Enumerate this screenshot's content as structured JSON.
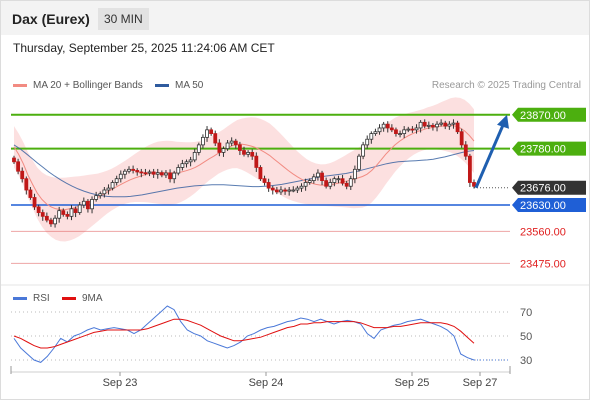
{
  "header": {
    "instrument": "Dax (Eurex)",
    "timeframe": "30 MIN"
  },
  "datetime": "Thursday, September 25, 2025 11:24:06 AM CET",
  "legend": {
    "items": [
      {
        "label": "MA 20 + Bollinger Bands",
        "color": "#f28b82"
      },
      {
        "label": "MA 50",
        "color": "#2f5b9e"
      }
    ],
    "credit": "Research © 2025 Trading Central"
  },
  "chart_data": {
    "type": "candlestick",
    "x_tick_labels": [
      "Sep 23",
      "Sep 24",
      "Sep 25",
      "Sep 27"
    ],
    "price_range": [
      23420,
      23920
    ],
    "levels": [
      {
        "value": 23870,
        "label": "23870.00",
        "kind": "resistance",
        "color": "#4caf0f"
      },
      {
        "value": 23780,
        "label": "23780.00",
        "kind": "resistance",
        "color": "#4caf0f"
      },
      {
        "value": 23676,
        "label": "23676.00",
        "kind": "last-price",
        "color": "#333333"
      },
      {
        "value": 23630,
        "label": "23630.00",
        "kind": "support",
        "color": "#1f5fd6"
      },
      {
        "value": 23560,
        "label": "23560.00",
        "kind": "support",
        "color": "#e05a5a"
      },
      {
        "value": 23475,
        "label": "23475.00",
        "kind": "support",
        "color": "#e05a5a"
      }
    ],
    "forecast_arrow": {
      "from": 23676,
      "to": 23870
    },
    "candles_close": [
      23745,
      23720,
      23700,
      23670,
      23650,
      23625,
      23610,
      23600,
      23590,
      23580,
      23595,
      23615,
      23605,
      23600,
      23620,
      23610,
      23630,
      23640,
      23620,
      23645,
      23655,
      23660,
      23670,
      23675,
      23690,
      23700,
      23712,
      23720,
      23725,
      23722,
      23718,
      23716,
      23715,
      23718,
      23712,
      23716,
      23710,
      23715,
      23700,
      23715,
      23730,
      23740,
      23745,
      23750,
      23770,
      23790,
      23810,
      23830,
      23820,
      23795,
      23770,
      23780,
      23795,
      23800,
      23790,
      23775,
      23765,
      23770,
      23760,
      23730,
      23700,
      23690,
      23675,
      23670,
      23665,
      23670,
      23667,
      23670,
      23670,
      23675,
      23680,
      23690,
      23695,
      23705,
      23715,
      23695,
      23680,
      23690,
      23700,
      23700,
      23688,
      23680,
      23700,
      23725,
      23760,
      23790,
      23805,
      23820,
      23825,
      23835,
      23845,
      23835,
      23830,
      23820,
      23820,
      23830,
      23832,
      23830,
      23835,
      23850,
      23840,
      23842,
      23838,
      23845,
      23848,
      23840,
      23845,
      23848,
      23825,
      23790,
      23760,
      23690,
      23680
    ],
    "ma20": [
      23785,
      23765,
      23740,
      23710,
      23685,
      23662,
      23645,
      23633,
      23625,
      23620,
      23618,
      23618,
      23620,
      23623,
      23627,
      23632,
      23638,
      23644,
      23650,
      23657,
      23664,
      23671,
      23678,
      23685,
      23691,
      23697,
      23702,
      23706,
      23710,
      23713,
      23715,
      23716,
      23716,
      23716,
      23716,
      23716,
      23718,
      23721,
      23725,
      23730,
      23737,
      23745,
      23753,
      23760,
      23768,
      23775,
      23782,
      23788,
      23792,
      23792,
      23790,
      23787,
      23783,
      23777,
      23770,
      23762,
      23752,
      23742,
      23732,
      23722,
      23713,
      23705,
      23698,
      23692,
      23688,
      23685,
      23683,
      23683,
      23684,
      23686,
      23689,
      23692,
      23695,
      23698,
      23702,
      23706,
      23712,
      23722,
      23735,
      23750,
      23765,
      23778,
      23790,
      23800,
      23808,
      23815,
      23821,
      23826,
      23830,
      23834,
      23836,
      23838,
      23840,
      23841,
      23842,
      23840,
      23835,
      23827,
      23815,
      23800
    ],
    "ma50": [
      23790,
      23780,
      23768,
      23755,
      23742,
      23730,
      23718,
      23707,
      23697,
      23688,
      23680,
      23673,
      23667,
      23662,
      23658,
      23655,
      23653,
      23652,
      23652,
      23652,
      23653,
      23655,
      23657,
      23660,
      23663,
      23666,
      23669,
      23672,
      23675,
      23677,
      23679,
      23681,
      23682,
      23683,
      23684,
      23684,
      23684,
      23683,
      23682,
      23681,
      23680,
      23679,
      23679,
      23680,
      23681,
      23683,
      23685,
      23688,
      23691,
      23694,
      23697,
      23700,
      23703,
      23706,
      23708,
      23710,
      23712,
      23714,
      23717,
      23720,
      23724,
      23728,
      23732,
      23736,
      23740,
      23743,
      23745,
      23746,
      23747,
      23748,
      23749,
      23750,
      23752,
      23755,
      23758,
      23762,
      23766,
      23770,
      23773,
      23775
    ],
    "rsi": {
      "y_tick_labels": [
        "70",
        "50",
        "30"
      ],
      "rsi_values": [
        48,
        40,
        35,
        30,
        28,
        33,
        40,
        48,
        45,
        50,
        52,
        55,
        57,
        55,
        56,
        57,
        56,
        55,
        52,
        55,
        60,
        65,
        70,
        75,
        72,
        62,
        55,
        52,
        50,
        46,
        44,
        42,
        40,
        42,
        45,
        50,
        52,
        55,
        57,
        58,
        60,
        62,
        63,
        65,
        64,
        62,
        64,
        62,
        60,
        62,
        63,
        62,
        60,
        52,
        48,
        55,
        57,
        59,
        60,
        62,
        63,
        64,
        62,
        60,
        58,
        55,
        50,
        35,
        32,
        30
      ],
      "ma9_values": [
        50,
        48,
        45,
        42,
        40,
        40,
        41,
        43,
        45,
        47,
        49,
        51,
        53,
        54,
        55,
        55,
        55,
        55,
        55,
        55,
        56,
        58,
        60,
        62,
        64,
        64,
        63,
        61,
        59,
        56,
        53,
        50,
        48,
        46,
        46,
        47,
        48,
        49,
        51,
        53,
        55,
        57,
        58,
        60,
        60,
        61,
        61,
        62,
        62,
        62,
        62,
        62,
        61,
        59,
        57,
        57,
        57,
        58,
        58,
        59,
        60,
        61,
        61,
        61,
        61,
        60,
        58,
        54,
        49,
        44
      ],
      "range": [
        20,
        80
      ]
    }
  },
  "rsi_legend": [
    {
      "label": "RSI",
      "color": "#4a78d8"
    },
    {
      "label": "9MA",
      "color": "#e01010"
    }
  ]
}
